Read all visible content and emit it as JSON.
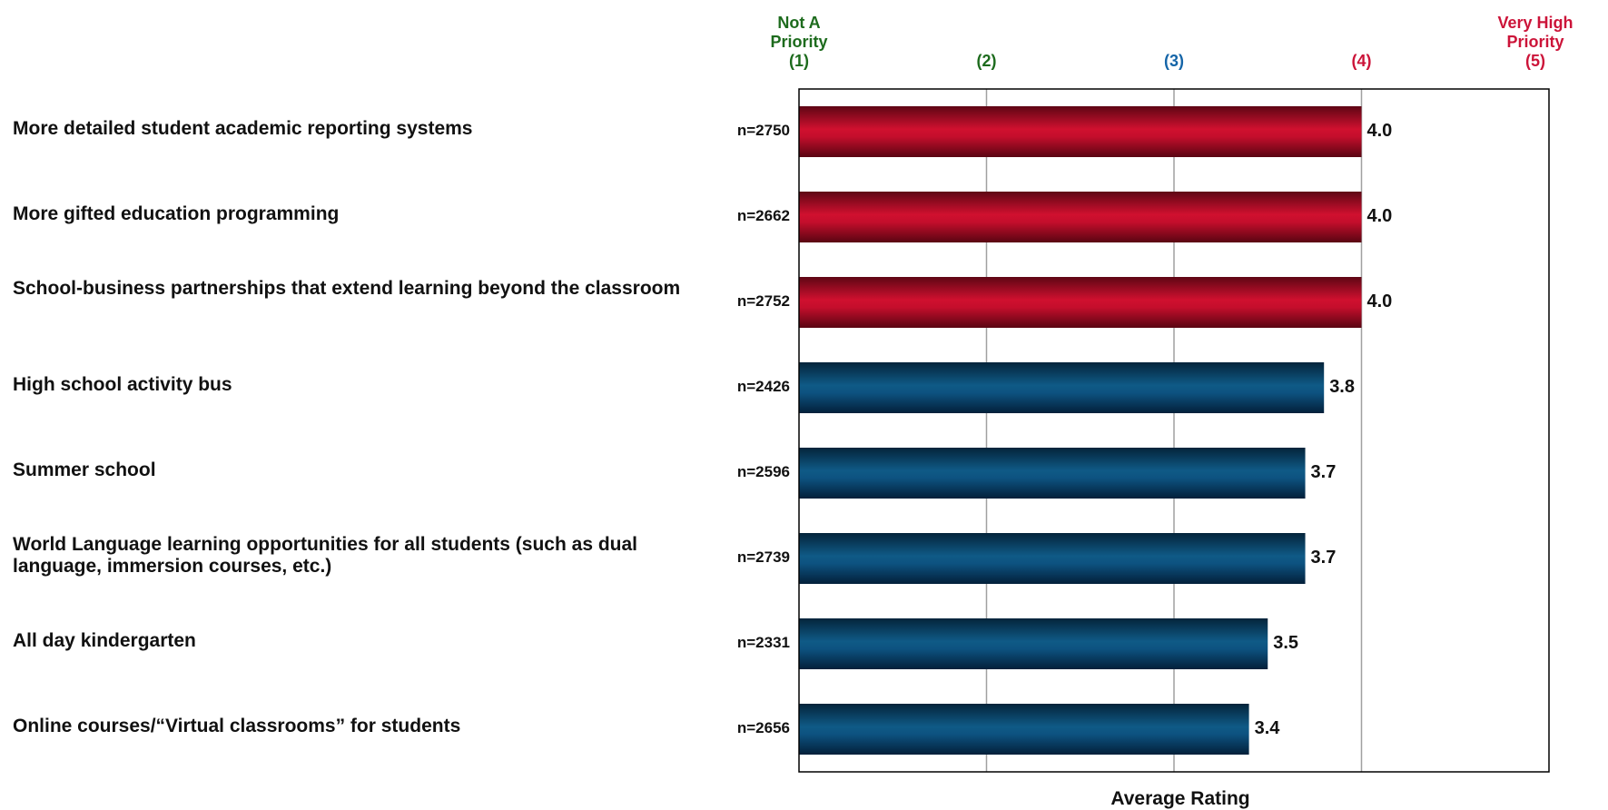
{
  "chart_data": {
    "type": "bar",
    "orientation": "horizontal",
    "categories": [
      "More detailed student academic reporting systems",
      "More gifted education programming",
      "School-business partnerships that extend learning beyond the classroom",
      "High school activity bus",
      "Summer school",
      "World Language learning opportunities for all students (such as dual language, immersion courses, etc.)",
      "All day kindergarten",
      "Online courses/“Virtual classrooms” for students"
    ],
    "values": [
      4.0,
      4.0,
      4.0,
      3.8,
      3.7,
      3.7,
      3.5,
      3.4
    ],
    "value_labels": [
      "4.0",
      "4.0",
      "4.0",
      "3.8",
      "3.7",
      "3.7",
      "3.5",
      "3.4"
    ],
    "n_labels": [
      "n=2750",
      "n=2662",
      "n=2752",
      "n=2426",
      "n=2596",
      "n=2739",
      "n=2331",
      "n=2656"
    ],
    "bar_colors": [
      "#c8102e",
      "#c8102e",
      "#c8102e",
      "#0f5a85",
      "#0f5a85",
      "#0f5a85",
      "#0f5a85",
      "#0f5a85"
    ],
    "xlim": [
      1,
      5
    ],
    "xticks": [
      {
        "value": 1,
        "label": "Not A Priority (1)",
        "lines": [
          "Not A",
          "Priority",
          "(1)"
        ],
        "color": "#1d6b1d"
      },
      {
        "value": 2,
        "label": "(2)",
        "lines": [
          "(2)"
        ],
        "color": "#1d6b1d"
      },
      {
        "value": 3,
        "label": "(3)",
        "lines": [
          "(3)"
        ],
        "color": "#1565a8"
      },
      {
        "value": 4,
        "label": "(4)",
        "lines": [
          "(4)"
        ],
        "color": "#cc1439"
      },
      {
        "value": 5,
        "label": "Very High Priority (5)",
        "lines": [
          "Very High",
          "Priority",
          "(5)"
        ],
        "color": "#cc1439"
      }
    ],
    "xlabel": "Average Rating",
    "ylabel": "",
    "title": "",
    "grid": true,
    "legend": "none"
  }
}
